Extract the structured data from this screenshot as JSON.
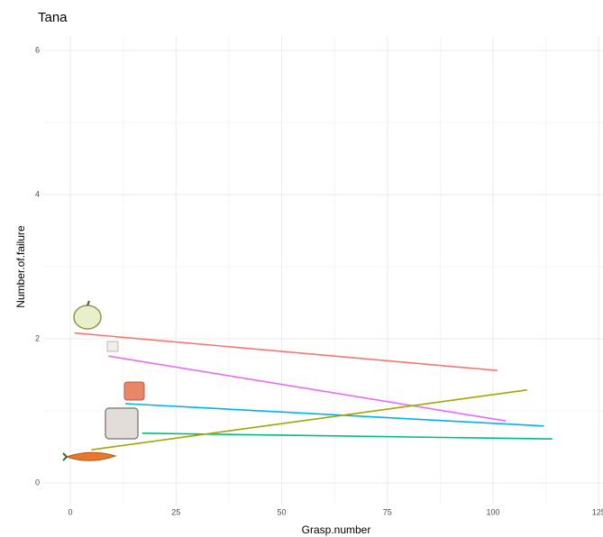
{
  "chart_data": {
    "type": "line",
    "title": "Tana",
    "x_label": "Grasp.number",
    "y_label": "Number.of.failure",
    "series": [
      {
        "color": "#f8766d",
        "x": [
          1,
          101
        ],
        "values": [
          2.08,
          1.56
        ]
      },
      {
        "color": "#e76bf3",
        "x": [
          9,
          103
        ],
        "values": [
          1.76,
          0.86
        ]
      },
      {
        "color": "#00b0f6",
        "x": [
          13,
          112
        ],
        "values": [
          1.1,
          0.79
        ]
      },
      {
        "color": "#00bf7d",
        "x": [
          17,
          114
        ],
        "values": [
          0.69,
          0.61
        ]
      },
      {
        "color": "#a3a500",
        "x": [
          5,
          108
        ],
        "values": [
          0.46,
          1.29
        ]
      }
    ],
    "xlim": [
      -6.4,
      126
    ],
    "xticks": [
      0,
      25,
      50,
      75,
      100,
      125
    ],
    "ylim": [
      -0.3,
      6.2
    ],
    "yticks": [
      0,
      2,
      4,
      6
    ],
    "grid": true
  }
}
